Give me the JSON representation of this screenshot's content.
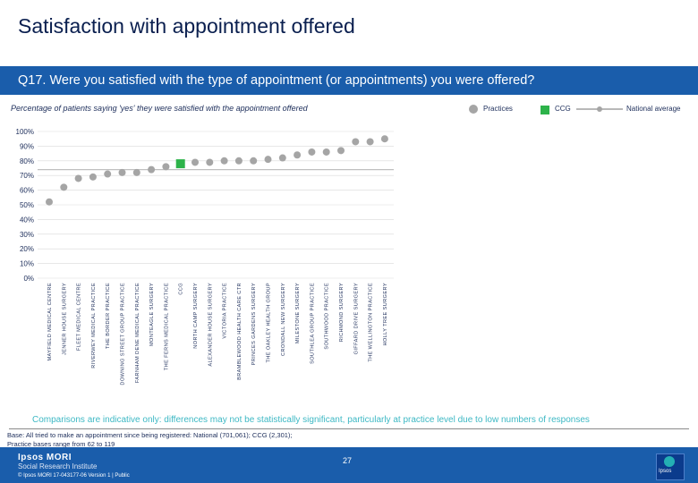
{
  "page": {
    "title": "Satisfaction with appointment offered",
    "question": "Q17. Were you satisfied with the type of appointment (or appointments) you were offered?",
    "subtitle": "Percentage of patients saying 'yes' they were satisfied with the appointment offered",
    "comparisons_note": "Comparisons are indicative only: differences may not be statistically significant, particularly at practice level due to low numbers of responses",
    "base_line1": "Base: All tried to make an appointment since being registered: National (701,061); CCG (2,301);",
    "base_line2": "Practice bases range from 62 to 119",
    "logo_line1": "Ipsos MORI",
    "logo_line2": "Social Research Institute",
    "copyright": "© Ipsos MORI      17-043177-06 Version 1 | Public",
    "page_number": "27",
    "badge_text": "Ipsos"
  },
  "legend": {
    "practices": "Practices",
    "ccg": "CCG",
    "national": "National average"
  },
  "colors": {
    "practice": "#a5a5a5",
    "ccg": "#2db34a",
    "national": "#c0c0c0",
    "grid": "#d9d9d9",
    "text": "#1c2d5a"
  },
  "chart_data": {
    "type": "scatter",
    "title": "Percentage of patients saying 'yes' they were satisfied with the appointment offered",
    "ylim": [
      0,
      100
    ],
    "yticks": [
      "0%",
      "10%",
      "20%",
      "30%",
      "40%",
      "50%",
      "60%",
      "70%",
      "80%",
      "90%",
      "100%"
    ],
    "national_average": 74,
    "categories": [
      "MAYFIELD MEDICAL CENTRE",
      "JENNER HOUSE SURGERY",
      "FLEET MEDICAL CENTRE",
      "RIVERWEY MEDICAL PRACTICE",
      "THE BORDER PRACTICE",
      "DOWNING STREET GROUP PRACTICE",
      "FARNHAM DENE MEDICAL PRACTICE",
      "MONTEAGLE SURGERY",
      "THE FERNS MEDICAL PRACTICE",
      "CCG",
      "NORTH CAMP SURGERY",
      "ALEXANDER HOUSE SURGERY",
      "VICTORIA PRACTICE",
      "BRAMBLEWOOD HEALTH CARE CTR",
      "PRINCES GARDENS SURGERY",
      "THE OAKLEY HEALTH GROUP",
      "CRONDALL NEW SURGERY",
      "MILESTONE SURGERY",
      "SOUTHLEA GROUP PRACTICE",
      "SOUTHWOOD PRACTICE",
      "RICHMOND SURGERY",
      "GIFFARD DRIVE SURGERY",
      "THE WELLINGTON PRACTICE",
      "HOLLY TREE SURGERY"
    ],
    "values": [
      52,
      62,
      68,
      69,
      71,
      72,
      72,
      74,
      76,
      78,
      79,
      79,
      80,
      80,
      80,
      81,
      82,
      84,
      86,
      86,
      87,
      93,
      93,
      95
    ],
    "is_ccg": [
      false,
      false,
      false,
      false,
      false,
      false,
      false,
      false,
      false,
      true,
      false,
      false,
      false,
      false,
      false,
      false,
      false,
      false,
      false,
      false,
      false,
      false,
      false,
      false
    ]
  }
}
